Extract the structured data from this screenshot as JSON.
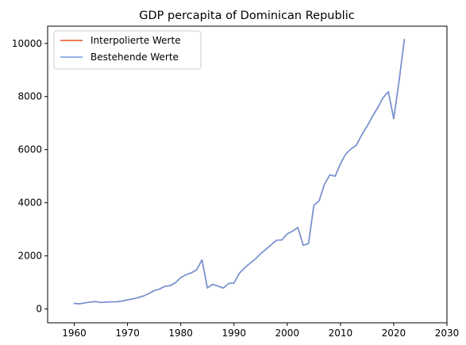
{
  "chart_data": {
    "type": "line",
    "title": "GDP percapita of Dominican Republic",
    "xlabel": "",
    "ylabel": "",
    "xlim": [
      1955,
      2030
    ],
    "ylim": [
      -520,
      10650
    ],
    "xticks": [
      1960,
      1970,
      1980,
      1990,
      2000,
      2010,
      2020,
      2030
    ],
    "yticks": [
      0,
      2000,
      4000,
      6000,
      8000,
      10000
    ],
    "grid": false,
    "legend_position": "upper-left",
    "x": [
      1960,
      1961,
      1962,
      1963,
      1964,
      1965,
      1966,
      1967,
      1968,
      1969,
      1970,
      1971,
      1972,
      1973,
      1974,
      1975,
      1976,
      1977,
      1978,
      1979,
      1980,
      1981,
      1982,
      1983,
      1984,
      1985,
      1986,
      1987,
      1988,
      1989,
      1990,
      1991,
      1992,
      1993,
      1994,
      1995,
      1996,
      1997,
      1998,
      1999,
      2000,
      2001,
      2002,
      2003,
      2004,
      2005,
      2006,
      2007,
      2008,
      2009,
      2010,
      2011,
      2012,
      2013,
      2014,
      2015,
      2016,
      2017,
      2018,
      2019,
      2020,
      2021,
      2022
    ],
    "series": [
      {
        "name": "Interpolierte Werte",
        "color": "#e4571f",
        "values": [
          210,
          195,
          230,
          260,
          280,
          245,
          260,
          265,
          270,
          300,
          345,
          380,
          430,
          490,
          580,
          690,
          750,
          850,
          880,
          990,
          1180,
          1290,
          1360,
          1480,
          1850,
          790,
          930,
          860,
          790,
          960,
          980,
          1340,
          1550,
          1720,
          1880,
          2080,
          2250,
          2420,
          2590,
          2600,
          2830,
          2930,
          3070,
          2400,
          2460,
          3900,
          4080,
          4700,
          5050,
          5000,
          5470,
          5840,
          6030,
          6170,
          6560,
          6880,
          7250,
          7580,
          7960,
          8180,
          7170,
          8570,
          10150
        ]
      },
      {
        "name": "Bestehende Werte",
        "color": "#6f97df",
        "values": [
          210,
          195,
          230,
          260,
          280,
          245,
          260,
          265,
          270,
          300,
          345,
          380,
          430,
          490,
          580,
          690,
          750,
          850,
          880,
          990,
          1180,
          1290,
          1360,
          1480,
          1850,
          790,
          930,
          860,
          790,
          960,
          980,
          1340,
          1550,
          1720,
          1880,
          2080,
          2250,
          2420,
          2590,
          2600,
          2830,
          2930,
          3070,
          2400,
          2460,
          3900,
          4080,
          4700,
          5050,
          5000,
          5470,
          5840,
          6030,
          6170,
          6560,
          6880,
          7250,
          7580,
          7960,
          8180,
          7170,
          8570,
          10150
        ]
      }
    ]
  }
}
